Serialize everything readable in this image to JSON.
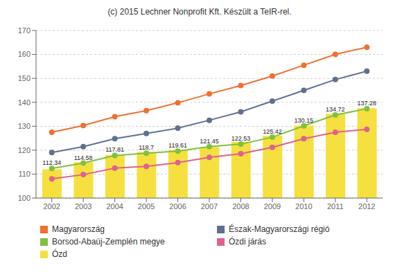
{
  "chart_data": {
    "type": "bar",
    "title": "(c) 2015 Lechner Nonprofit Kft. Készült a TeIR-rel.",
    "categories": [
      "2002",
      "2003",
      "2004",
      "2005",
      "2006",
      "2007",
      "2008",
      "2009",
      "2010",
      "2011",
      "2012"
    ],
    "series": [
      {
        "name": "Magyarország",
        "type": "line",
        "color": "#F07030",
        "marker": "circle",
        "values": [
          127.5,
          130.3,
          134.0,
          136.5,
          139.8,
          143.5,
          147.0,
          151.0,
          155.5,
          160.0,
          163.0
        ]
      },
      {
        "name": "Észak-Magyarországi régió",
        "type": "line",
        "color": "#607090",
        "marker": "circle",
        "values": [
          119.0,
          121.5,
          124.8,
          127.0,
          129.2,
          132.5,
          136.0,
          140.5,
          145.0,
          149.5,
          153.0
        ]
      },
      {
        "name": "Borsod-Abaúj-Zemplén megye",
        "type": "line",
        "color": "#80C040",
        "marker": "circle",
        "data_labels": true,
        "values": [
          112.34,
          114.58,
          117.81,
          118.7,
          119.61,
          121.45,
          122.53,
          125.42,
          130.15,
          134.72,
          137.28
        ]
      },
      {
        "name": "Ózdi járás",
        "type": "line",
        "color": "#E06090",
        "marker": "circle",
        "values": [
          108.0,
          109.8,
          112.5,
          113.2,
          114.8,
          117.0,
          118.5,
          121.2,
          124.8,
          127.5,
          128.7
        ]
      },
      {
        "name": "Ózd",
        "type": "bar",
        "color": "#F5E040",
        "values": [
          112.0,
          115.0,
          118.0,
          119.2,
          120.1,
          121.3,
          123.5,
          126.0,
          130.2,
          135.2,
          137.5
        ]
      }
    ],
    "ylim": [
      100,
      170
    ],
    "yticks": [
      100,
      110,
      120,
      130,
      140,
      150,
      160,
      170
    ],
    "grid": true,
    "legend": "bottom"
  }
}
